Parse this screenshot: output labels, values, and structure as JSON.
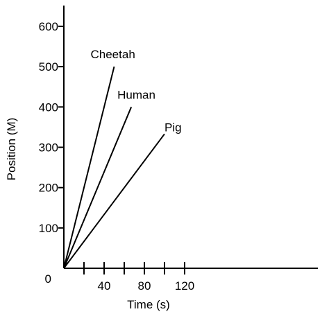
{
  "chart_data": {
    "type": "line",
    "title": "",
    "xlabel": "Time (s)",
    "ylabel": "Position (M)",
    "xlim": [
      0,
      140
    ],
    "ylim": [
      0,
      660
    ],
    "x_ticks": [
      20,
      40,
      60,
      80,
      100,
      120
    ],
    "x_tick_labels": [
      "",
      "40",
      "",
      "80",
      "",
      "120"
    ],
    "y_ticks": [
      0,
      100,
      200,
      300,
      400,
      500,
      600
    ],
    "y_tick_labels": [
      "0",
      "100",
      "200",
      "300",
      "400",
      "500",
      "600"
    ],
    "grid": false,
    "legend": "none",
    "series": [
      {
        "name": "Cheetah",
        "x": [
          0,
          50
        ],
        "y": [
          0,
          500
        ]
      },
      {
        "name": "Human",
        "x": [
          0,
          67
        ],
        "y": [
          0,
          400
        ]
      },
      {
        "name": "Pig",
        "x": [
          0,
          100
        ],
        "y": [
          0,
          333
        ]
      }
    ],
    "colors": {
      "line": "#000000",
      "axis": "#000000",
      "background": "#ffffff"
    }
  }
}
